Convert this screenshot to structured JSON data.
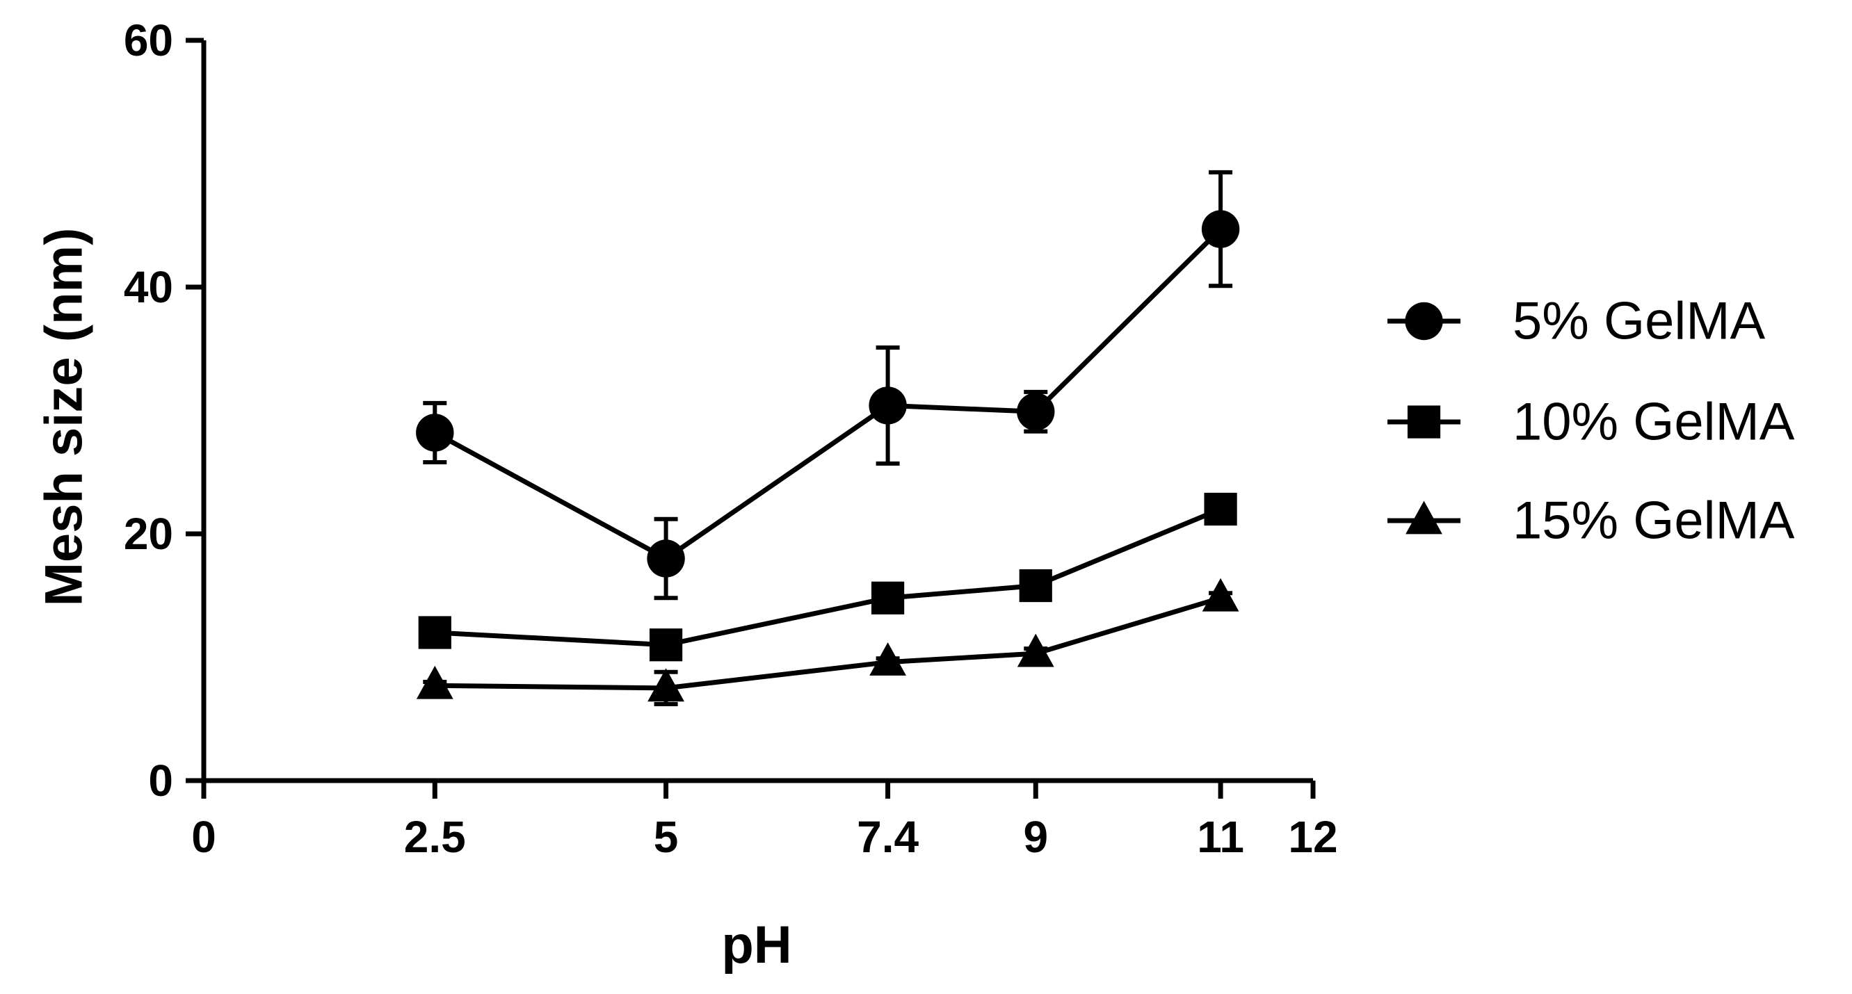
{
  "chart_data": {
    "type": "line",
    "title": "",
    "xlabel": "pH",
    "ylabel": "Mesh size (nm)",
    "xlim": [
      0,
      12
    ],
    "ylim": [
      0,
      60
    ],
    "x_ticks": [
      0,
      2.5,
      5,
      7.4,
      9,
      11,
      12
    ],
    "x_tick_labels": [
      "0",
      "2.5",
      "5",
      "7.4",
      "9",
      "11",
      "12"
    ],
    "y_ticks": [
      0,
      20,
      40,
      60
    ],
    "y_tick_labels": [
      "0",
      "20",
      "40",
      "60"
    ],
    "x": [
      2.5,
      5,
      7.4,
      9,
      11
    ],
    "legend_position": "right",
    "series": [
      {
        "name": "5% GelMA",
        "marker": "circle",
        "values": [
          28.2,
          18.0,
          30.4,
          29.9,
          44.7
        ],
        "errors": [
          2.4,
          3.2,
          4.7,
          1.6,
          4.6
        ]
      },
      {
        "name": "10% GelMA",
        "marker": "square",
        "values": [
          12.0,
          11.0,
          14.8,
          15.8,
          22.0
        ],
        "errors": [
          0.4,
          0.4,
          0.5,
          0.6,
          0.7
        ]
      },
      {
        "name": "15% GelMA",
        "marker": "triangle",
        "values": [
          7.7,
          7.5,
          9.6,
          10.3,
          14.8
        ],
        "errors": [
          0.3,
          1.3,
          0.3,
          0.4,
          0.4
        ]
      }
    ],
    "colors": {
      "line": "#000000",
      "background": "#ffffff"
    }
  }
}
